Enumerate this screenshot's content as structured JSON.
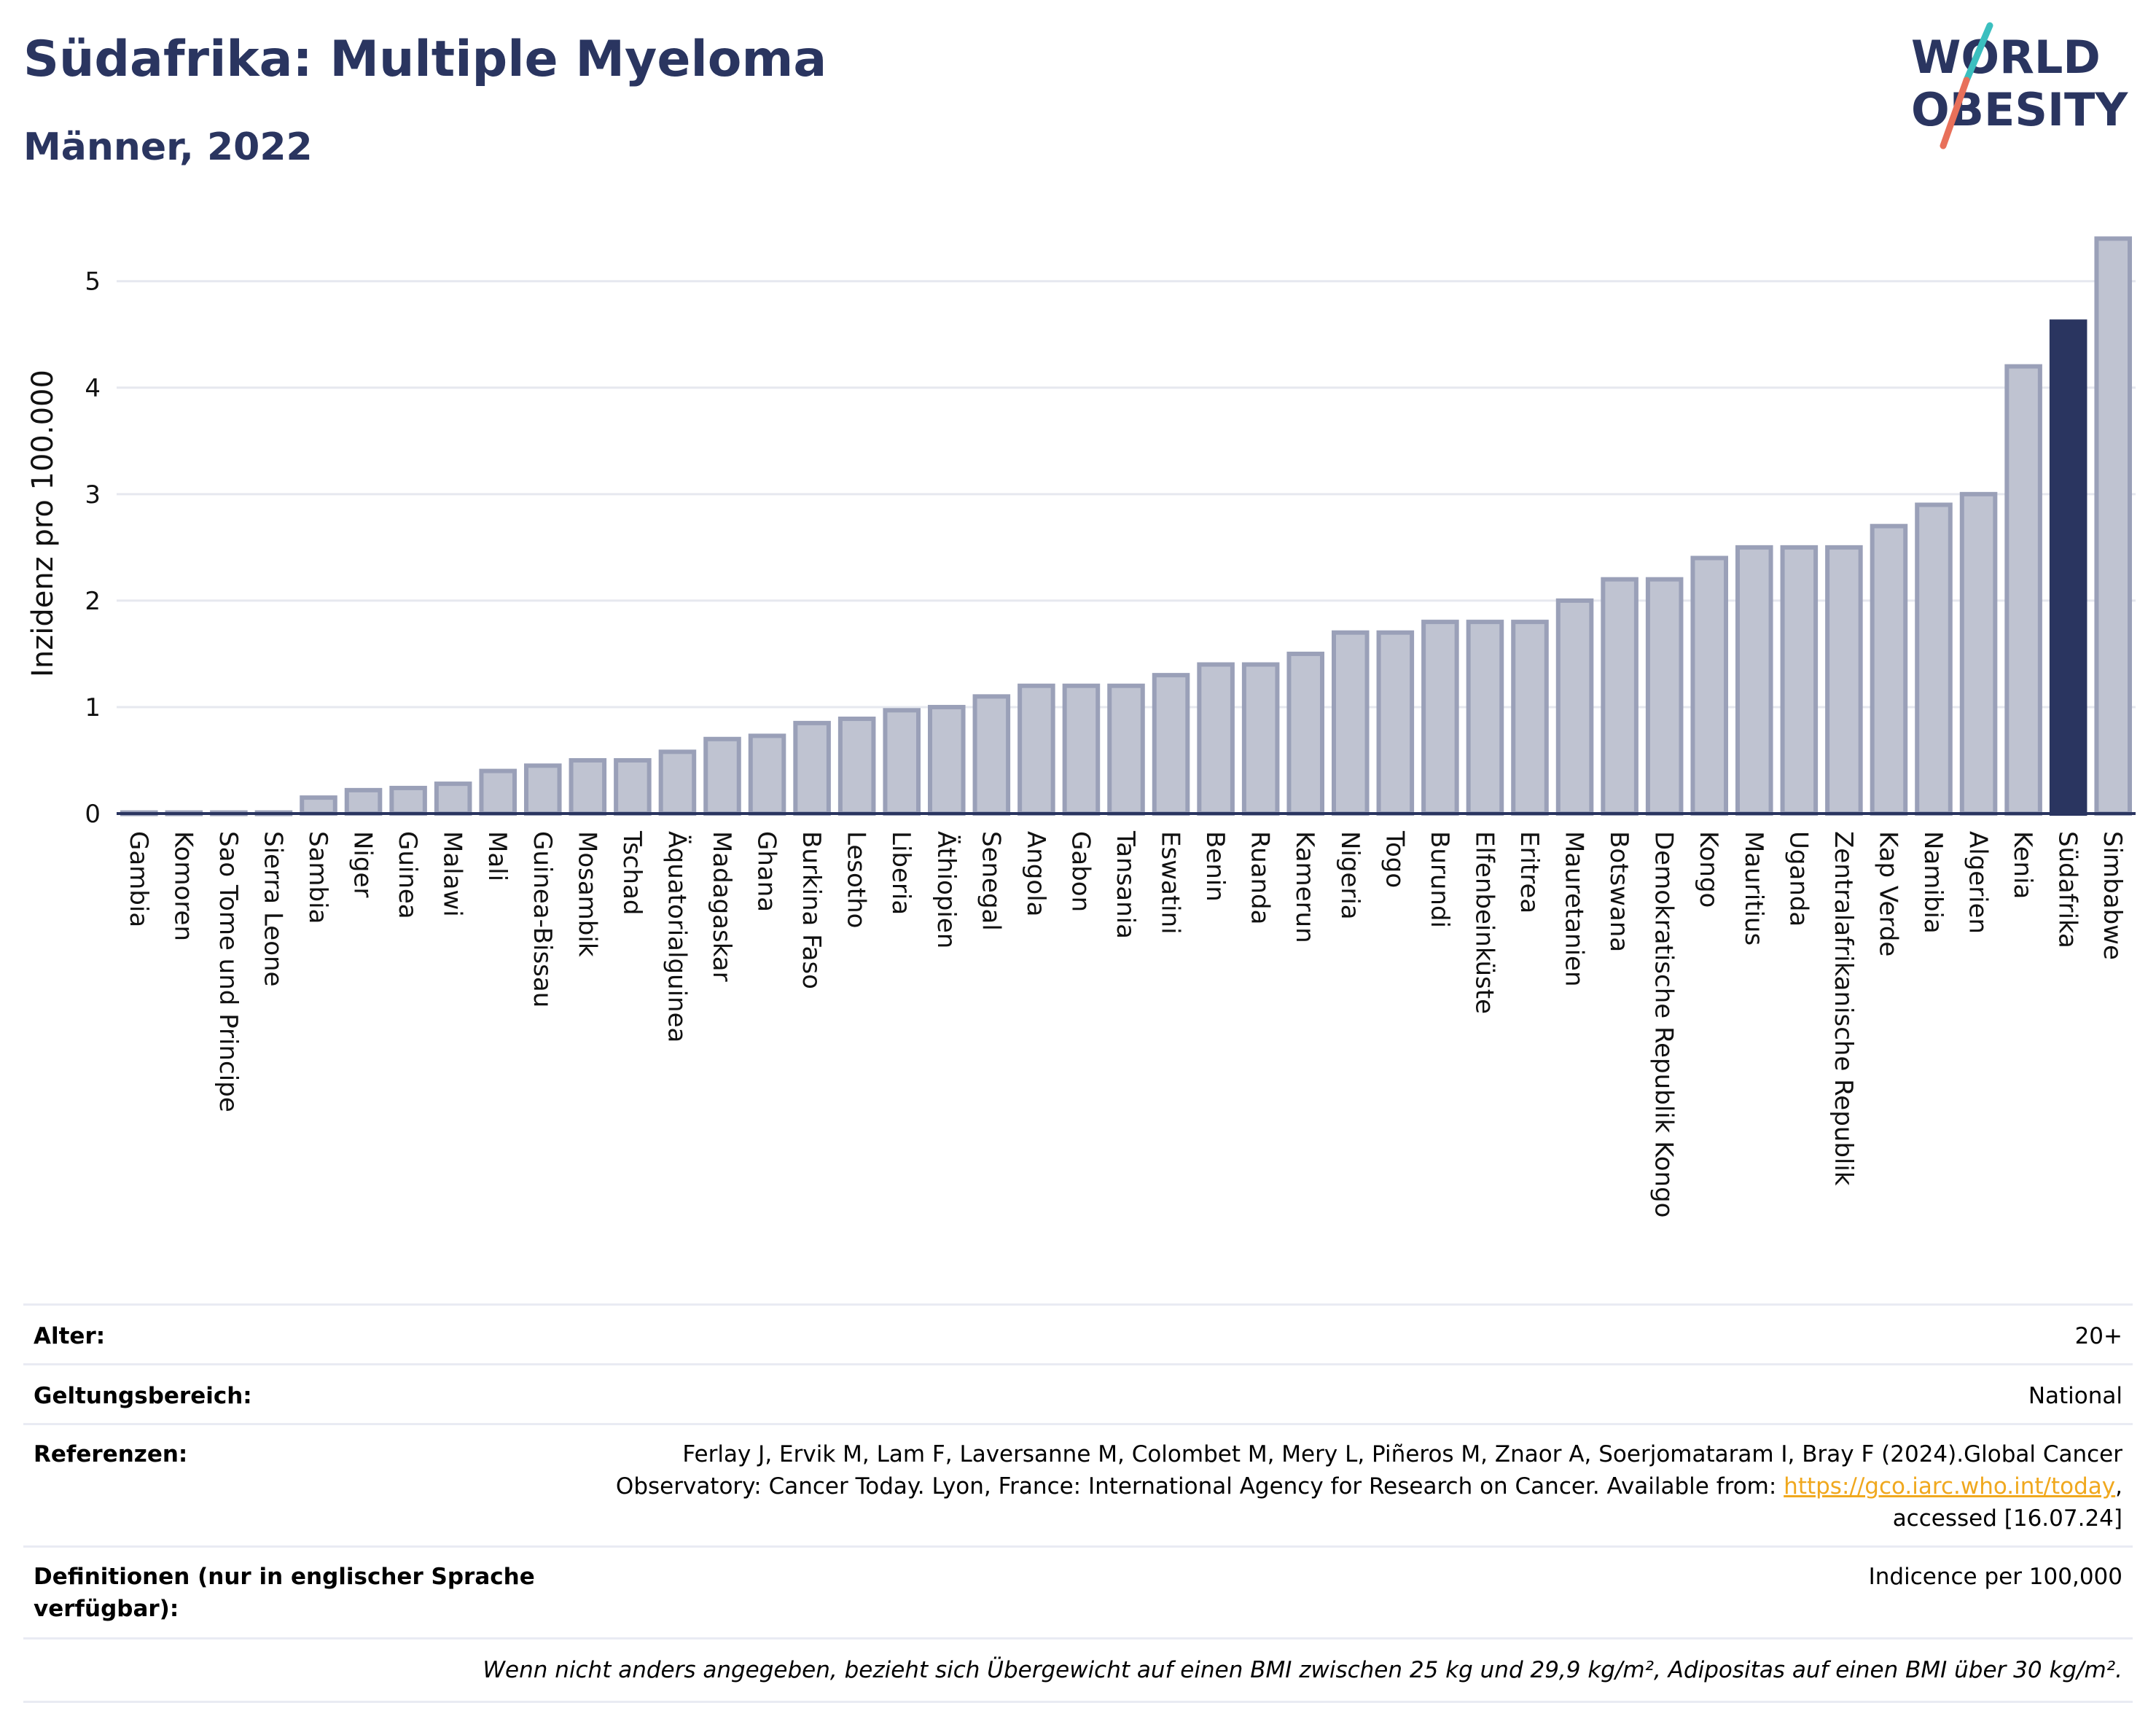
{
  "header": {
    "title": "Südafrika: Multiple Myeloma",
    "subtitle": "Männer, 2022"
  },
  "logo": {
    "line1": "WORLD",
    "line2": "OBESITY",
    "colors": {
      "text": "#2a3560",
      "slash_top": "#3bbfbf",
      "slash_bottom": "#e8705a"
    }
  },
  "chart_data": {
    "type": "bar",
    "ylabel": "Inzidenz pro 100.000",
    "xlabel": "",
    "ylim": [
      0,
      5.45
    ],
    "yticks": [
      0,
      1,
      2,
      3,
      4,
      5
    ],
    "grid": true,
    "highlight": "Südafrika",
    "colors": {
      "bar": "#bfc3d1",
      "bar_edge": "#9aa0b8",
      "highlight": "#2a3560",
      "grid": "#e6e8ef",
      "axis": "#2a3560"
    },
    "categories": [
      "Gambia",
      "Komoren",
      "Sao Tome und Principe",
      "Sierra Leone",
      "Sambia",
      "Niger",
      "Guinea",
      "Malawi",
      "Mali",
      "Guinea-Bissau",
      "Mosambik",
      "Tschad",
      "Äquatorialguinea",
      "Madagaskar",
      "Ghana",
      "Burkina Faso",
      "Lesotho",
      "Liberia",
      "Äthiopien",
      "Senegal",
      "Angola",
      "Gabon",
      "Tansania",
      "Eswatini",
      "Benin",
      "Ruanda",
      "Kamerun",
      "Nigeria",
      "Togo",
      "Burundi",
      "Elfenbeinküste",
      "Eritrea",
      "Mauretanien",
      "Botswana",
      "Demokratische Republik Kongo",
      "Kongo",
      "Mauritius",
      "Uganda",
      "Zentralafrikanische Republik",
      "Kap Verde",
      "Namibia",
      "Algerien",
      "Kenia",
      "Südafrika",
      "Simbabwe"
    ],
    "values": [
      0.01,
      0.01,
      0.01,
      0.01,
      0.15,
      0.22,
      0.24,
      0.28,
      0.4,
      0.45,
      0.5,
      0.5,
      0.58,
      0.7,
      0.73,
      0.85,
      0.89,
      0.97,
      1.0,
      1.1,
      1.2,
      1.2,
      1.2,
      1.3,
      1.4,
      1.4,
      1.5,
      1.7,
      1.7,
      1.8,
      1.8,
      1.8,
      2.0,
      2.2,
      2.2,
      2.4,
      2.5,
      2.5,
      2.5,
      2.7,
      2.9,
      3.0,
      4.2,
      4.62,
      5.4
    ]
  },
  "meta": {
    "age_label": "Alter:",
    "age_value": "20+",
    "scope_label": "Geltungsbereich:",
    "scope_value": "National",
    "refs_label": "Referenzen:",
    "refs_line1": "Ferlay J, Ervik M, Lam F, Laversanne M, Colombet M, Mery L, Piñeros M, Znaor A, Soerjomataram I, Bray F (2024).Global Cancer",
    "refs_line2_pre": "Observatory: Cancer Today. Lyon, France: International Agency for Research on Cancer. Available from: ",
    "refs_link": "https://gco.iarc.who.int/today",
    "refs_line2_post": ",",
    "refs_line3": "accessed [16.07.24]",
    "defs_label_line1": "Definitionen (nur in englischer Sprache",
    "defs_label_line2": "verfügbar):",
    "defs_value": "Indicence per 100,000",
    "footnote": "Wenn nicht anders angegeben, bezieht sich Übergewicht auf einen BMI zwischen 25 kg und 29,9 kg/m², Adipositas auf einen BMI über 30 kg/m²."
  }
}
